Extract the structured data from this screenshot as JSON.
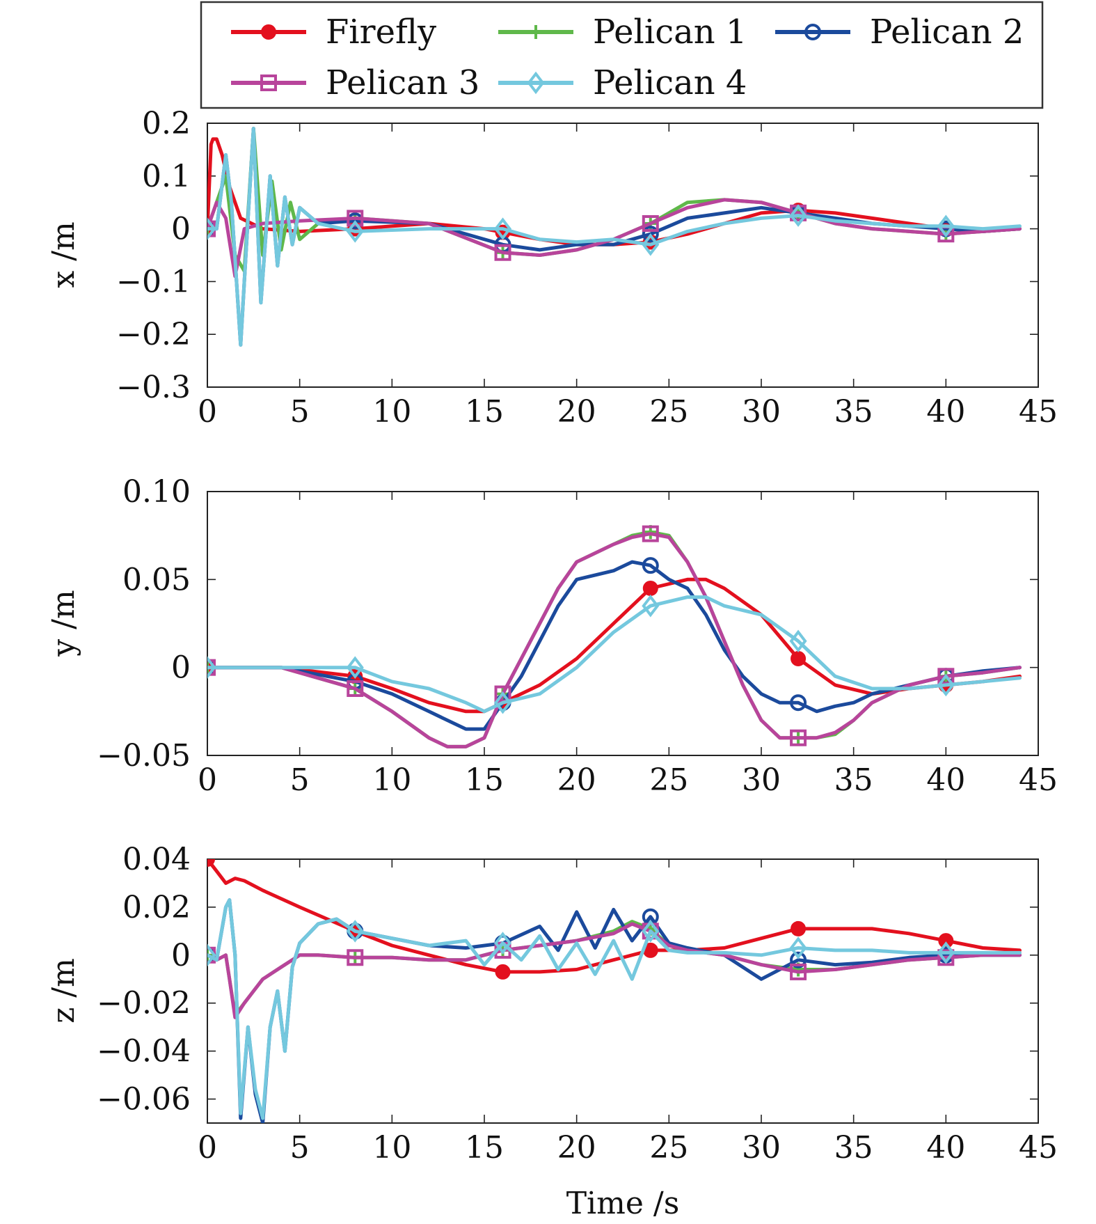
{
  "chart_data": [
    {
      "type": "line",
      "ylabel": "x /m",
      "xlabel": "",
      "xlim": [
        0,
        45
      ],
      "ylim": [
        -0.3,
        0.2
      ],
      "xticks": [
        "0",
        "5",
        "10",
        "15",
        "20",
        "25",
        "30",
        "35",
        "40",
        "45"
      ],
      "yticks": [
        "0.2",
        "0.1",
        "0",
        "−0.1",
        "−0.2",
        "−0.3"
      ],
      "grid": false,
      "legend": "top",
      "series": [
        {
          "name": "Firefly",
          "x": [
            0,
            0.2,
            0.3,
            0.5,
            0.8,
            1.2,
            1.8,
            3,
            5,
            8,
            12,
            15,
            18,
            20,
            22,
            24,
            26,
            28,
            30,
            32,
            34,
            36,
            38,
            40,
            42,
            44
          ],
          "y": [
            0,
            0.16,
            0.17,
            0.17,
            0.14,
            0.08,
            0.02,
            0.0,
            -0.005,
            0.0,
            0.01,
            0.0,
            -0.02,
            -0.03,
            -0.03,
            -0.025,
            -0.01,
            0.01,
            0.03,
            0.035,
            0.03,
            0.02,
            0.01,
            0.0,
            -0.005,
            0.0
          ]
        },
        {
          "name": "Pelican 1",
          "x": [
            0,
            0.5,
            1.0,
            1.5,
            2.0,
            2.5,
            3.0,
            3.5,
            4.0,
            4.5,
            5,
            6,
            8,
            12,
            16,
            18,
            20,
            22,
            24,
            25,
            26,
            28,
            30,
            32,
            34,
            36,
            38,
            40,
            42,
            44
          ],
          "y": [
            0,
            0.05,
            0.1,
            -0.05,
            -0.08,
            0.19,
            -0.05,
            0.09,
            -0.04,
            0.05,
            -0.02,
            0.01,
            0.02,
            0.01,
            -0.045,
            -0.05,
            -0.04,
            -0.02,
            0.01,
            0.03,
            0.05,
            0.055,
            0.05,
            0.03,
            0.01,
            0.0,
            -0.005,
            -0.01,
            -0.005,
            0.0
          ]
        },
        {
          "name": "Pelican 2",
          "x": [
            0,
            0.5,
            1.0,
            1.3,
            1.8,
            2.2,
            2.5,
            2.9,
            3.4,
            3.8,
            4.2,
            4.6,
            5,
            6,
            8,
            12,
            16,
            18,
            20,
            22,
            24,
            26,
            28,
            30,
            32,
            34,
            36,
            38,
            40,
            42,
            44
          ],
          "y": [
            0,
            0.0,
            0.14,
            0.05,
            -0.22,
            0.02,
            0.19,
            -0.14,
            0.1,
            -0.07,
            0.06,
            -0.03,
            0.04,
            0.01,
            0.015,
            0.01,
            -0.03,
            -0.04,
            -0.03,
            -0.03,
            -0.01,
            0.02,
            0.03,
            0.04,
            0.03,
            0.02,
            0.01,
            0.005,
            0.0,
            -0.005,
            0.0
          ]
        },
        {
          "name": "Pelican 3",
          "x": [
            0,
            0.5,
            1.0,
            1.5,
            2.0,
            3,
            5,
            8,
            12,
            16,
            18,
            20,
            22,
            24,
            26,
            28,
            30,
            32,
            34,
            36,
            38,
            40,
            42,
            44
          ],
          "y": [
            0,
            0.05,
            0.02,
            -0.09,
            0.0,
            0.01,
            0.015,
            0.02,
            0.01,
            -0.045,
            -0.05,
            -0.04,
            -0.02,
            0.01,
            0.04,
            0.055,
            0.05,
            0.03,
            0.01,
            0.0,
            -0.005,
            -0.01,
            -0.005,
            0.0
          ]
        },
        {
          "name": "Pelican 4",
          "x": [
            0,
            0.5,
            1.0,
            1.3,
            1.8,
            2.2,
            2.5,
            2.9,
            3.4,
            3.8,
            4.2,
            4.6,
            5,
            6,
            8,
            12,
            16,
            18,
            20,
            22,
            24,
            26,
            28,
            30,
            32,
            34,
            36,
            38,
            40,
            42,
            44
          ],
          "y": [
            0,
            0.0,
            0.14,
            0.05,
            -0.22,
            0.02,
            0.19,
            -0.14,
            0.1,
            -0.07,
            0.06,
            -0.03,
            0.04,
            0.01,
            -0.005,
            0.0,
            0.0,
            -0.02,
            -0.025,
            -0.02,
            -0.03,
            -0.005,
            0.01,
            0.02,
            0.025,
            0.015,
            0.01,
            0.005,
            0.005,
            0.0,
            0.005
          ]
        }
      ]
    },
    {
      "type": "line",
      "ylabel": "y /m",
      "xlabel": "",
      "xlim": [
        0,
        45
      ],
      "ylim": [
        -0.05,
        0.1
      ],
      "xticks": [
        "0",
        "5",
        "10",
        "15",
        "20",
        "25",
        "30",
        "35",
        "40",
        "45"
      ],
      "yticks": [
        "0.10",
        "0.05",
        "0",
        "−0.05"
      ],
      "grid": false,
      "series": [
        {
          "name": "Firefly",
          "x": [
            0,
            4,
            8,
            10,
            12,
            14,
            15,
            16,
            18,
            20,
            22,
            24,
            26,
            27,
            28,
            30,
            32,
            34,
            36,
            38,
            40,
            42,
            44
          ],
          "y": [
            0,
            0.0,
            -0.005,
            -0.012,
            -0.02,
            -0.025,
            -0.025,
            -0.02,
            -0.01,
            0.005,
            0.025,
            0.045,
            0.05,
            0.05,
            0.045,
            0.03,
            0.005,
            -0.01,
            -0.015,
            -0.012,
            -0.01,
            -0.008,
            -0.005
          ]
        },
        {
          "name": "Pelican 1",
          "x": [
            0,
            4,
            8,
            10,
            12,
            13,
            14,
            15,
            16,
            17,
            18,
            19,
            20,
            22,
            23,
            24,
            25,
            26,
            27,
            28,
            29,
            30,
            31,
            32,
            33,
            34,
            35,
            36,
            38,
            40,
            42,
            44
          ],
          "y": [
            0,
            0.0,
            -0.012,
            -0.025,
            -0.04,
            -0.045,
            -0.045,
            -0.04,
            -0.015,
            0.005,
            0.025,
            0.045,
            0.06,
            0.07,
            0.075,
            0.077,
            0.075,
            0.06,
            0.04,
            0.015,
            -0.01,
            -0.03,
            -0.04,
            -0.04,
            -0.04,
            -0.038,
            -0.03,
            -0.02,
            -0.01,
            -0.005,
            -0.003,
            0.0
          ]
        },
        {
          "name": "Pelican 2",
          "x": [
            0,
            4,
            8,
            10,
            12,
            13,
            14,
            15,
            16,
            17,
            18,
            19,
            20,
            22,
            23,
            24,
            25,
            26,
            27,
            28,
            29,
            30,
            31,
            32,
            33,
            34,
            35,
            36,
            38,
            40,
            42,
            44
          ],
          "y": [
            0,
            0.0,
            -0.008,
            -0.015,
            -0.025,
            -0.03,
            -0.035,
            -0.035,
            -0.02,
            -0.005,
            0.015,
            0.035,
            0.05,
            0.055,
            0.06,
            0.058,
            0.05,
            0.045,
            0.03,
            0.01,
            -0.005,
            -0.015,
            -0.02,
            -0.02,
            -0.025,
            -0.022,
            -0.02,
            -0.015,
            -0.01,
            -0.005,
            -0.002,
            0.0
          ]
        },
        {
          "name": "Pelican 3",
          "x": [
            0,
            4,
            8,
            10,
            12,
            13,
            14,
            15,
            16,
            17,
            18,
            19,
            20,
            22,
            23,
            24,
            25,
            26,
            27,
            28,
            29,
            30,
            31,
            32,
            33,
            34,
            35,
            36,
            38,
            40,
            42,
            44
          ],
          "y": [
            0,
            0.0,
            -0.012,
            -0.025,
            -0.04,
            -0.045,
            -0.045,
            -0.04,
            -0.015,
            0.005,
            0.025,
            0.045,
            0.06,
            0.07,
            0.074,
            0.076,
            0.074,
            0.06,
            0.04,
            0.015,
            -0.01,
            -0.03,
            -0.04,
            -0.04,
            -0.04,
            -0.037,
            -0.03,
            -0.02,
            -0.01,
            -0.005,
            -0.003,
            0.0
          ]
        },
        {
          "name": "Pelican 4",
          "x": [
            0,
            4,
            8,
            10,
            12,
            14,
            15,
            16,
            18,
            20,
            22,
            24,
            26,
            27,
            28,
            30,
            32,
            34,
            36,
            38,
            40,
            42,
            44
          ],
          "y": [
            0,
            0.0,
            0.0,
            -0.008,
            -0.012,
            -0.02,
            -0.025,
            -0.02,
            -0.015,
            0.0,
            0.02,
            0.035,
            0.04,
            0.04,
            0.035,
            0.03,
            0.015,
            -0.005,
            -0.012,
            -0.012,
            -0.01,
            -0.008,
            -0.006
          ]
        }
      ]
    },
    {
      "type": "line",
      "ylabel": "z /m",
      "xlabel": "Time /s",
      "xlim": [
        0,
        45
      ],
      "ylim": [
        -0.07,
        0.04
      ],
      "xticks": [
        "0",
        "5",
        "10",
        "15",
        "20",
        "25",
        "30",
        "35",
        "40",
        "45"
      ],
      "yticks": [
        "0.04",
        "0.02",
        "0",
        "−0.02",
        "−0.04",
        "−0.06"
      ],
      "grid": false,
      "series": [
        {
          "name": "Firefly",
          "x": [
            0,
            0.5,
            1.0,
            1.5,
            2.0,
            3,
            5,
            8,
            10,
            12,
            14,
            16,
            18,
            20,
            22,
            24,
            26,
            28,
            30,
            32,
            34,
            36,
            38,
            40,
            42,
            44
          ],
          "y": [
            0.04,
            0.035,
            0.03,
            0.032,
            0.031,
            0.027,
            0.02,
            0.01,
            0.004,
            0.0,
            -0.004,
            -0.007,
            -0.007,
            -0.006,
            -0.002,
            0.002,
            0.002,
            0.003,
            0.007,
            0.011,
            0.011,
            0.011,
            0.009,
            0.006,
            0.003,
            0.002
          ]
        },
        {
          "name": "Pelican 1",
          "x": [
            0,
            0.5,
            1.0,
            1.2,
            1.5,
            2.0,
            2.5,
            3,
            4,
            5,
            6,
            8,
            10,
            12,
            14,
            16,
            18,
            20,
            22,
            23,
            24,
            25,
            26,
            28,
            30,
            32,
            34,
            36,
            38,
            40,
            42,
            44
          ],
          "y": [
            0,
            -0.002,
            0.0,
            -0.01,
            -0.025,
            -0.02,
            -0.015,
            -0.01,
            -0.005,
            0.0,
            0.0,
            -0.001,
            -0.001,
            -0.002,
            -0.002,
            0.002,
            0.004,
            0.006,
            0.01,
            0.014,
            0.011,
            0.004,
            0.002,
            0.0,
            -0.004,
            -0.006,
            -0.006,
            -0.004,
            -0.002,
            -0.001,
            0.0,
            0.0
          ]
        },
        {
          "name": "Pelican 2",
          "x": [
            0,
            0.5,
            1.0,
            1.2,
            1.5,
            1.8,
            2.2,
            2.6,
            3.0,
            3.4,
            3.8,
            4.2,
            4.6,
            5,
            6,
            7,
            8,
            10,
            12,
            14,
            16,
            18,
            19,
            20,
            21,
            22,
            23,
            24,
            25,
            26,
            28,
            30,
            32,
            34,
            36,
            38,
            40,
            42,
            44
          ],
          "y": [
            0,
            -0.002,
            0.02,
            0.023,
            0.0,
            -0.068,
            -0.03,
            -0.058,
            -0.07,
            -0.03,
            -0.015,
            -0.04,
            -0.005,
            0.005,
            0.013,
            0.015,
            0.01,
            0.007,
            0.004,
            0.003,
            0.005,
            0.012,
            0.002,
            0.018,
            0.003,
            0.019,
            0.006,
            0.016,
            0.005,
            0.003,
            0.0,
            -0.01,
            -0.002,
            -0.004,
            -0.003,
            -0.001,
            0.0,
            0.0,
            0.0
          ]
        },
        {
          "name": "Pelican 3",
          "x": [
            0,
            0.5,
            1.0,
            1.2,
            1.5,
            2.0,
            2.5,
            3,
            4,
            5,
            6,
            8,
            10,
            12,
            14,
            16,
            18,
            20,
            22,
            23,
            24,
            25,
            26,
            28,
            30,
            32,
            34,
            36,
            38,
            40,
            42,
            44
          ],
          "y": [
            0,
            -0.002,
            0.0,
            -0.01,
            -0.026,
            -0.02,
            -0.015,
            -0.01,
            -0.005,
            0.0,
            0.0,
            -0.001,
            -0.001,
            -0.002,
            -0.002,
            0.002,
            0.004,
            0.006,
            0.009,
            0.013,
            0.01,
            0.004,
            0.002,
            0.0,
            -0.004,
            -0.007,
            -0.006,
            -0.004,
            -0.002,
            -0.001,
            0.0,
            0.0
          ]
        },
        {
          "name": "Pelican 4",
          "x": [
            0,
            0.5,
            1.0,
            1.2,
            1.5,
            1.8,
            2.2,
            2.6,
            3.0,
            3.4,
            3.8,
            4.2,
            4.6,
            5,
            6,
            7,
            8,
            10,
            12,
            14,
            15,
            16,
            17,
            18,
            19,
            20,
            21,
            22,
            23,
            24,
            25,
            26,
            28,
            30,
            32,
            34,
            36,
            38,
            40,
            42,
            44
          ],
          "y": [
            0,
            -0.002,
            0.02,
            0.023,
            0.0,
            -0.066,
            -0.03,
            -0.056,
            -0.068,
            -0.03,
            -0.015,
            -0.04,
            -0.005,
            0.005,
            0.013,
            0.015,
            0.01,
            0.007,
            0.004,
            0.006,
            -0.004,
            0.005,
            -0.002,
            0.008,
            -0.006,
            0.005,
            -0.008,
            0.006,
            -0.01,
            0.01,
            0.002,
            0.001,
            0.001,
            0.0,
            0.003,
            0.002,
            0.002,
            0.001,
            0.001,
            0.001,
            0.001
          ]
        }
      ]
    }
  ],
  "legend": {
    "entries": [
      {
        "name": "Firefly",
        "color": "#e3101e",
        "marker": "dot"
      },
      {
        "name": "Pelican 1",
        "color": "#5fb84a",
        "marker": "plus"
      },
      {
        "name": "Pelican 2",
        "color": "#1b4a9c",
        "marker": "circle"
      },
      {
        "name": "Pelican 3",
        "color": "#b8449b",
        "marker": "square"
      },
      {
        "name": "Pelican 4",
        "color": "#74c8de",
        "marker": "diamond"
      }
    ]
  }
}
